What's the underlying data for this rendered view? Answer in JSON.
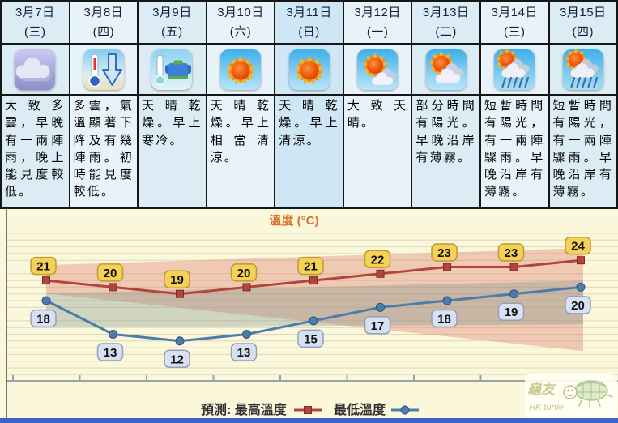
{
  "days": [
    {
      "date": "3月7日",
      "weekday": "(三)",
      "icon": "cloudy",
      "icon_label": "cloudy",
      "desc": "大致多雲，早晚有一兩陣雨，晚上能見度較低。"
    },
    {
      "date": "3月8日",
      "weekday": "(四)",
      "icon": "temp-drop",
      "icon_label": "temperature-drop",
      "desc": "多雲，氣溫顯著下降及有幾陣雨。初時能見度較低。"
    },
    {
      "date": "3月9日",
      "weekday": "(五)",
      "icon": "cold",
      "icon_label": "cold-clothing",
      "desc": "天晴乾燥。早上寒冷。"
    },
    {
      "date": "3月10日",
      "weekday": "(六)",
      "icon": "sunny",
      "icon_label": "sunny",
      "desc": "天晴乾燥。早上相當清涼。"
    },
    {
      "date": "3月11日",
      "weekday": "(日)",
      "icon": "sunny",
      "icon_label": "sunny",
      "desc": "天晴乾燥。早上清涼。",
      "highlight": true
    },
    {
      "date": "3月12日",
      "weekday": "(一)",
      "icon": "mostly-sunny",
      "icon_label": "mostly-sunny",
      "desc": "大致天晴。"
    },
    {
      "date": "3月13日",
      "weekday": "(二)",
      "icon": "partly-sunny",
      "icon_label": "partly-sunny",
      "desc": "部分時間有陽光。早晚沿岸有薄霧。"
    },
    {
      "date": "3月14日",
      "weekday": "(三)",
      "icon": "sunny-showers",
      "icon_label": "sunny-with-showers",
      "desc": "短暫時間有陽光，有一兩陣驟雨。早晚沿岸有薄霧。"
    },
    {
      "date": "3月15日",
      "weekday": "(四)",
      "icon": "sunny-showers",
      "icon_label": "sunny-with-showers",
      "desc": "短暫時間有陽光，有一兩陣驟雨。早晚沿岸有薄霧。"
    }
  ],
  "chart_data": {
    "type": "line",
    "title": "溫度 (°C)",
    "title_color": "#dd6f2d",
    "categories": [
      "3月7日",
      "3月8日",
      "3月9日",
      "3月10日",
      "3月11日",
      "3月12日",
      "3月13日",
      "3月14日",
      "3月15日"
    ],
    "series": [
      {
        "name": "最高溫度",
        "values": [
          21,
          20,
          19,
          20,
          21,
          22,
          23,
          23,
          24
        ],
        "color": "#b2453d",
        "marker": "square",
        "marker_stroke": "#7e2b22",
        "label_bg": "#f6d158",
        "label_border": "#bd9a33",
        "band_color": "rgba(222,125,110,0.38)"
      },
      {
        "name": "最低溫度",
        "values": [
          18,
          13,
          12,
          13,
          15,
          17,
          18,
          19,
          20
        ],
        "color": "#4d7cab",
        "marker": "circle",
        "marker_stroke": "#2c5680",
        "label_bg": "#d7e1f3",
        "label_border": "#97a0b4",
        "band_color": "rgba(125,150,140,0.35)"
      }
    ],
    "legend_prefix": "預測:",
    "legend_position": "bottom",
    "ylim": [
      7,
      28
    ],
    "grid": true,
    "bg": "#fbf7da",
    "grid_color": "#ddd8bc",
    "axis_color": "#9aa2ab"
  },
  "watermark": {
    "line1": "龜友",
    "line2": "HK turtle"
  },
  "colors": {
    "cell_bg": "#e8f3f9",
    "cell_bg_alt": "#dcecf5",
    "cell_bg_highlight": "#cfe7f5",
    "table_border": "#161616",
    "bottom_bar": "#3c63c6"
  }
}
